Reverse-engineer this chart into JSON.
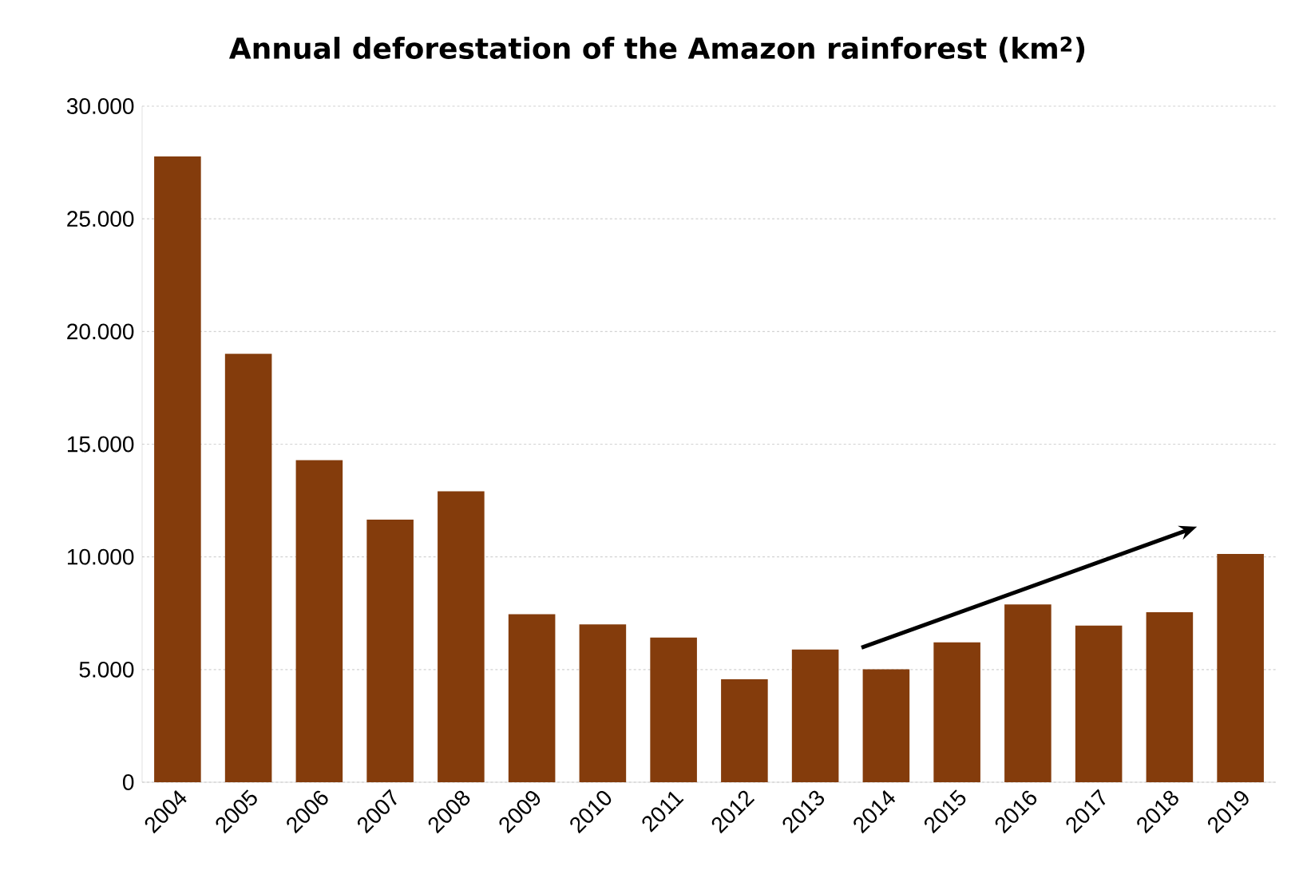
{
  "chart_data": {
    "type": "bar",
    "title": "Annual deforestation of the Amazon rainforest (km$^{2}$)",
    "categories": [
      "2004",
      "2005",
      "2006",
      "2007",
      "2008",
      "2009",
      "2010",
      "2011",
      "2012",
      "2013",
      "2014",
      "2015",
      "2016",
      "2017",
      "2018",
      "2019"
    ],
    "values": [
      27770,
      19010,
      14290,
      11650,
      12910,
      7460,
      7000,
      6420,
      4570,
      5890,
      5010,
      6210,
      7890,
      6950,
      7540,
      10130
    ],
    "color": "#843c0c",
    "ylim": [
      0,
      30000
    ],
    "yticks": [
      0,
      {
        "value": 5000,
        "label": "5.000"
      },
      {
        "value": 10000,
        "label": "10.000"
      },
      {
        "value": 15000,
        "label": "15.000"
      },
      {
        "value": 20000,
        "label": "20.000"
      },
      {
        "value": 25000,
        "label": "25.000"
      },
      {
        "value": 30000,
        "label": "30.000"
      }
    ],
    "grid": "y"
  }
}
